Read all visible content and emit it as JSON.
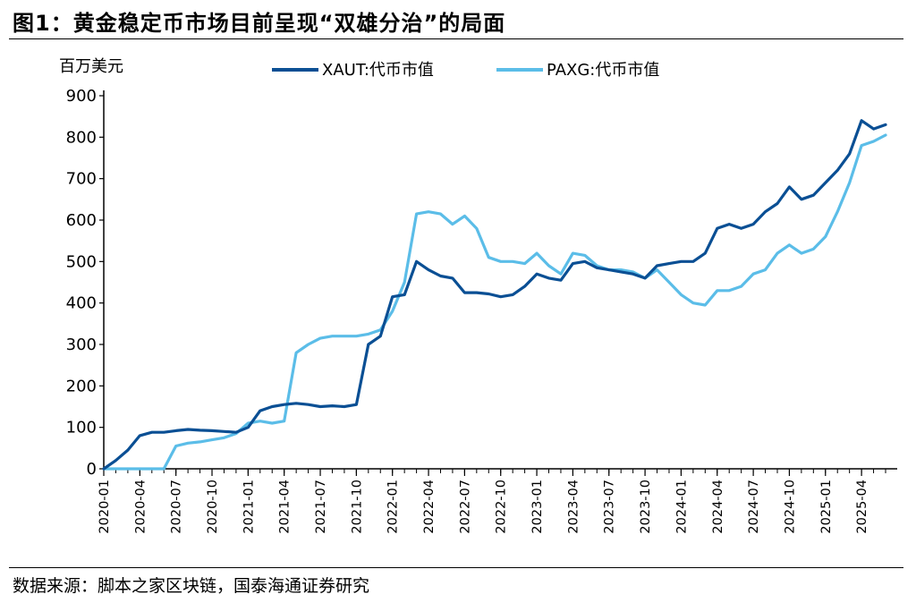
{
  "figure": {
    "title": "图1：黄金稳定币市场目前呈现“双雄分治”的局面",
    "source": "数据来源：脚本之家区块链，国泰海通证券研究"
  },
  "chart_data": {
    "type": "line",
    "title": "图1：黄金稳定币市场目前呈现“双雄分治”的局面",
    "ylabel": "百万美元",
    "xlabel": "",
    "ylim": [
      0,
      900
    ],
    "yticks": [
      0,
      100,
      200,
      300,
      400,
      500,
      600,
      700,
      800,
      900
    ],
    "xlim": [
      "2020-01",
      "2025-06"
    ],
    "xticks": [
      "2020-01",
      "2020-04",
      "2020-07",
      "2020-10",
      "2021-01",
      "2021-04",
      "2021-07",
      "2021-10",
      "2022-01",
      "2022-04",
      "2022-07",
      "2022-10",
      "2023-01",
      "2023-04",
      "2023-07",
      "2023-10",
      "2024-01",
      "2024-04",
      "2024-07",
      "2024-10",
      "2025-01",
      "2025-04"
    ],
    "grid": false,
    "legend": "top",
    "series": [
      {
        "name": "XAUT:代币市值",
        "color": "#0a4f94",
        "points": [
          [
            "2020-01",
            0
          ],
          [
            "2020-02",
            20
          ],
          [
            "2020-03",
            45
          ],
          [
            "2020-04",
            80
          ],
          [
            "2020-05",
            88
          ],
          [
            "2020-06",
            88
          ],
          [
            "2020-07",
            92
          ],
          [
            "2020-08",
            95
          ],
          [
            "2020-09",
            93
          ],
          [
            "2020-10",
            92
          ],
          [
            "2020-11",
            90
          ],
          [
            "2020-12",
            88
          ],
          [
            "2021-01",
            100
          ],
          [
            "2021-02",
            140
          ],
          [
            "2021-03",
            150
          ],
          [
            "2021-04",
            155
          ],
          [
            "2021-05",
            158
          ],
          [
            "2021-06",
            155
          ],
          [
            "2021-07",
            150
          ],
          [
            "2021-08",
            152
          ],
          [
            "2021-09",
            150
          ],
          [
            "2021-10",
            155
          ],
          [
            "2021-11",
            300
          ],
          [
            "2021-12",
            320
          ],
          [
            "2022-01",
            415
          ],
          [
            "2022-02",
            420
          ],
          [
            "2022-03",
            500
          ],
          [
            "2022-04",
            480
          ],
          [
            "2022-05",
            465
          ],
          [
            "2022-06",
            460
          ],
          [
            "2022-07",
            425
          ],
          [
            "2022-08",
            425
          ],
          [
            "2022-09",
            422
          ],
          [
            "2022-10",
            415
          ],
          [
            "2022-11",
            420
          ],
          [
            "2022-12",
            440
          ],
          [
            "2023-01",
            470
          ],
          [
            "2023-02",
            460
          ],
          [
            "2023-03",
            455
          ],
          [
            "2023-04",
            495
          ],
          [
            "2023-05",
            500
          ],
          [
            "2023-06",
            485
          ],
          [
            "2023-07",
            480
          ],
          [
            "2023-08",
            475
          ],
          [
            "2023-09",
            470
          ],
          [
            "2023-10",
            460
          ],
          [
            "2023-11",
            490
          ],
          [
            "2023-12",
            495
          ],
          [
            "2024-01",
            500
          ],
          [
            "2024-02",
            500
          ],
          [
            "2024-03",
            520
          ],
          [
            "2024-04",
            580
          ],
          [
            "2024-05",
            590
          ],
          [
            "2024-06",
            580
          ],
          [
            "2024-07",
            590
          ],
          [
            "2024-08",
            620
          ],
          [
            "2024-09",
            640
          ],
          [
            "2024-10",
            680
          ],
          [
            "2024-11",
            650
          ],
          [
            "2024-12",
            660
          ],
          [
            "2025-01",
            690
          ],
          [
            "2025-02",
            720
          ],
          [
            "2025-03",
            760
          ],
          [
            "2025-04",
            840
          ],
          [
            "2025-05",
            820
          ],
          [
            "2025-06",
            830
          ]
        ]
      },
      {
        "name": "PAXG:代币市值",
        "color": "#5bbde8",
        "points": [
          [
            "2020-01",
            0
          ],
          [
            "2020-02",
            0
          ],
          [
            "2020-03",
            0
          ],
          [
            "2020-04",
            0
          ],
          [
            "2020-05",
            0
          ],
          [
            "2020-06",
            0
          ],
          [
            "2020-07",
            55
          ],
          [
            "2020-08",
            62
          ],
          [
            "2020-09",
            65
          ],
          [
            "2020-10",
            70
          ],
          [
            "2020-11",
            75
          ],
          [
            "2020-12",
            85
          ],
          [
            "2021-01",
            110
          ],
          [
            "2021-02",
            115
          ],
          [
            "2021-03",
            110
          ],
          [
            "2021-04",
            115
          ],
          [
            "2021-05",
            280
          ],
          [
            "2021-06",
            300
          ],
          [
            "2021-07",
            315
          ],
          [
            "2021-08",
            320
          ],
          [
            "2021-09",
            320
          ],
          [
            "2021-10",
            320
          ],
          [
            "2021-11",
            325
          ],
          [
            "2021-12",
            335
          ],
          [
            "2022-01",
            380
          ],
          [
            "2022-02",
            450
          ],
          [
            "2022-03",
            615
          ],
          [
            "2022-04",
            620
          ],
          [
            "2022-05",
            615
          ],
          [
            "2022-06",
            590
          ],
          [
            "2022-07",
            610
          ],
          [
            "2022-08",
            580
          ],
          [
            "2022-09",
            510
          ],
          [
            "2022-10",
            500
          ],
          [
            "2022-11",
            500
          ],
          [
            "2022-12",
            495
          ],
          [
            "2023-01",
            520
          ],
          [
            "2023-02",
            490
          ],
          [
            "2023-03",
            470
          ],
          [
            "2023-04",
            520
          ],
          [
            "2023-05",
            515
          ],
          [
            "2023-06",
            490
          ],
          [
            "2023-07",
            480
          ],
          [
            "2023-08",
            480
          ],
          [
            "2023-09",
            475
          ],
          [
            "2023-10",
            460
          ],
          [
            "2023-11",
            480
          ],
          [
            "2023-12",
            450
          ],
          [
            "2024-01",
            420
          ],
          [
            "2024-02",
            400
          ],
          [
            "2024-03",
            395
          ],
          [
            "2024-04",
            430
          ],
          [
            "2024-05",
            430
          ],
          [
            "2024-06",
            440
          ],
          [
            "2024-07",
            470
          ],
          [
            "2024-08",
            480
          ],
          [
            "2024-09",
            520
          ],
          [
            "2024-10",
            540
          ],
          [
            "2024-11",
            520
          ],
          [
            "2024-12",
            530
          ],
          [
            "2025-01",
            560
          ],
          [
            "2025-02",
            620
          ],
          [
            "2025-03",
            690
          ],
          [
            "2025-04",
            780
          ],
          [
            "2025-05",
            790
          ],
          [
            "2025-06",
            805
          ]
        ]
      }
    ]
  }
}
